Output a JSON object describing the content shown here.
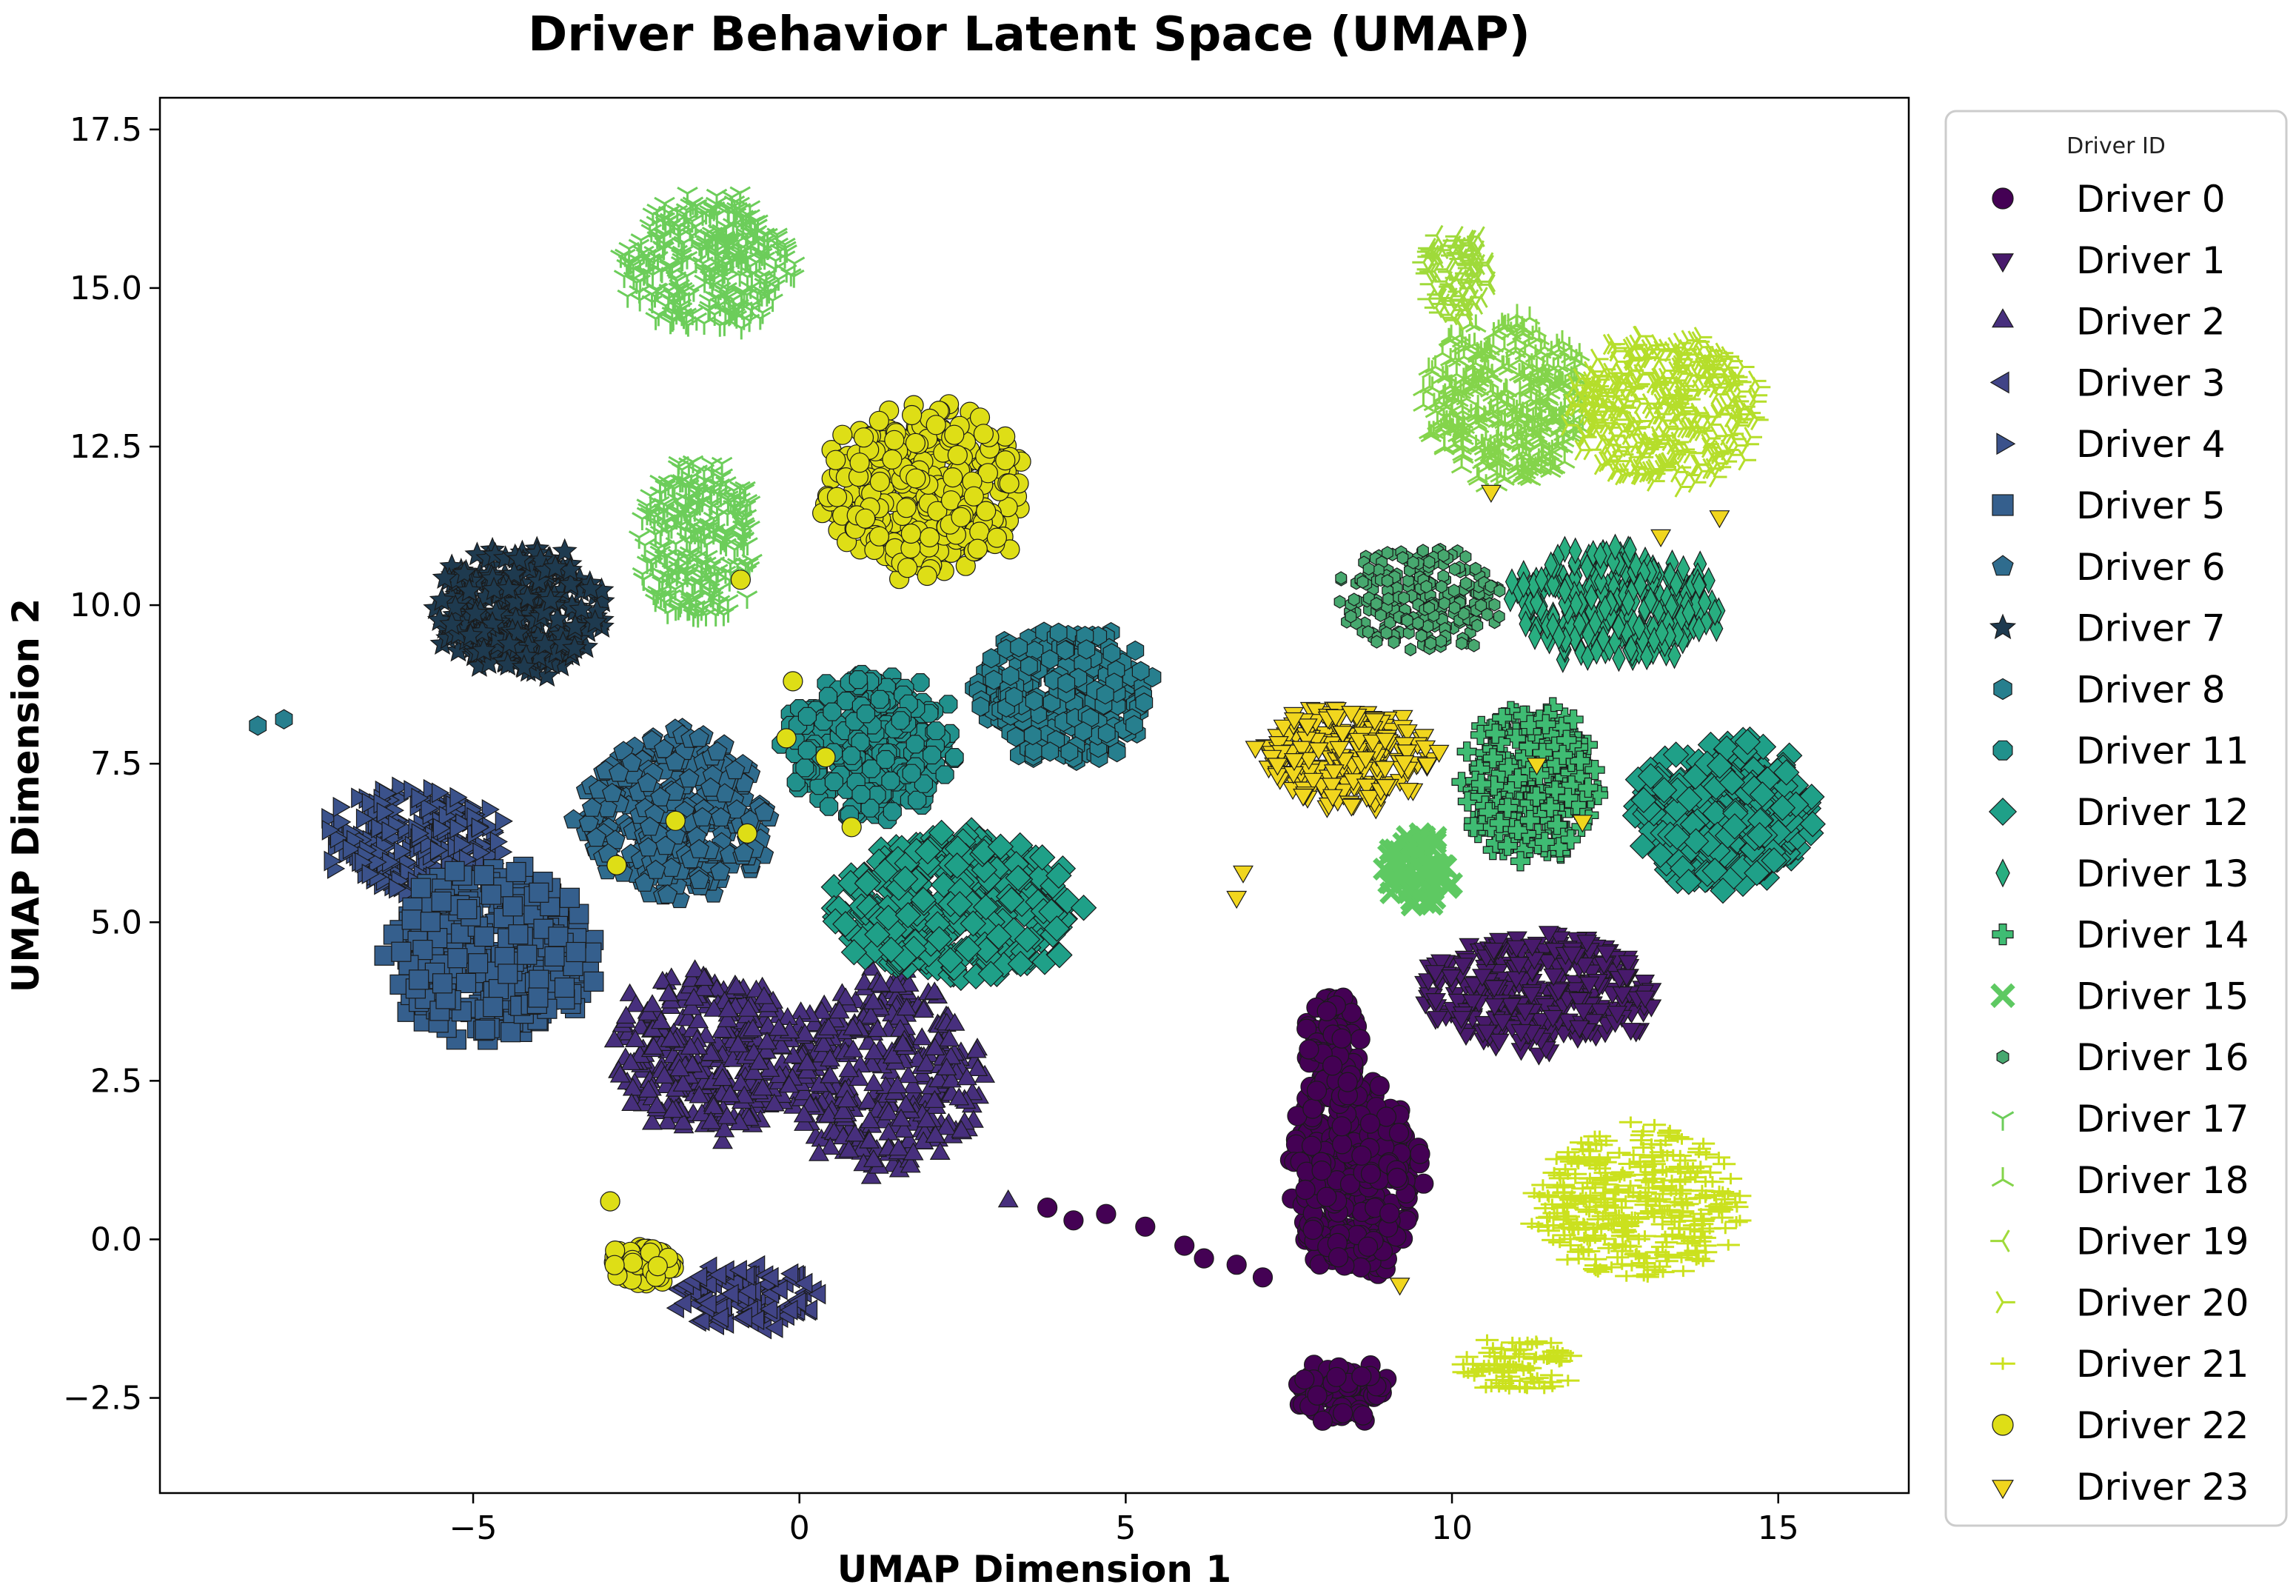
{
  "chart_data": {
    "type": "scatter",
    "title": "Driver Behavior Latent Space (UMAP)",
    "xlabel": "UMAP Dimension 1",
    "ylabel": "UMAP Dimension 2",
    "xlim": [
      -9.8,
      17.0
    ],
    "ylim": [
      -4.0,
      18.0
    ],
    "xticks": [
      -5,
      0,
      5,
      10,
      15
    ],
    "yticks": [
      -2.5,
      0.0,
      2.5,
      5.0,
      7.5,
      10.0,
      12.5,
      15.0,
      17.5
    ],
    "xtick_labels": [
      "−5",
      "0",
      "5",
      "10",
      "15"
    ],
    "ytick_labels": [
      "−2.5",
      "0.0",
      "2.5",
      "5.0",
      "7.5",
      "10.0",
      "12.5",
      "15.0",
      "17.5"
    ],
    "grid": false,
    "legend": {
      "title": "Driver ID",
      "placement": "outside-right"
    },
    "series": [
      {
        "name": "Driver 0",
        "marker": "circle",
        "color": "#440154",
        "clusters": [
          {
            "cx": 8.5,
            "cy": 1.0,
            "rx": 1.1,
            "ry": 1.8
          },
          {
            "cx": 8.2,
            "cy": 3.0,
            "rx": 0.5,
            "ry": 1.0
          },
          {
            "cx": 8.3,
            "cy": -2.4,
            "rx": 0.8,
            "ry": 0.55
          }
        ],
        "points": [
          {
            "x": 3.8,
            "y": 0.5
          },
          {
            "x": 4.2,
            "y": 0.3
          },
          {
            "x": 4.7,
            "y": 0.4
          },
          {
            "x": 5.3,
            "y": 0.2
          },
          {
            "x": 5.9,
            "y": -0.1
          },
          {
            "x": 6.2,
            "y": -0.3
          },
          {
            "x": 6.7,
            "y": -0.4
          },
          {
            "x": 7.1,
            "y": -0.6
          }
        ]
      },
      {
        "name": "Driver 1",
        "marker": "triangle-down",
        "color": "#481a6c",
        "clusters": [
          {
            "cx": 11.3,
            "cy": 3.9,
            "rx": 2.0,
            "ry": 1.0
          }
        ]
      },
      {
        "name": "Driver 2",
        "marker": "triangle-up",
        "color": "#472f7d",
        "clusters": [
          {
            "cx": 1.3,
            "cy": 2.6,
            "rx": 1.6,
            "ry": 1.7
          },
          {
            "cx": -1.4,
            "cy": 2.9,
            "rx": 1.7,
            "ry": 1.4
          }
        ],
        "points": [
          {
            "x": 3.2,
            "y": 0.6
          }
        ]
      },
      {
        "name": "Driver 3",
        "marker": "triangle-left",
        "color": "#414487",
        "clusters": [
          {
            "cx": -0.8,
            "cy": -0.9,
            "rx": 1.2,
            "ry": 0.55
          }
        ]
      },
      {
        "name": "Driver 4",
        "marker": "triangle-right",
        "color": "#3b528b",
        "clusters": [
          {
            "cx": -5.9,
            "cy": 6.3,
            "rx": 1.5,
            "ry": 1.0
          }
        ]
      },
      {
        "name": "Driver 5",
        "marker": "square",
        "color": "#355f8d",
        "clusters": [
          {
            "cx": -4.7,
            "cy": 4.5,
            "rx": 1.7,
            "ry": 1.5
          }
        ]
      },
      {
        "name": "Driver 6",
        "marker": "pentagon",
        "color": "#2f6c8e",
        "clusters": [
          {
            "cx": -1.9,
            "cy": 6.7,
            "rx": 1.6,
            "ry": 1.4
          }
        ]
      },
      {
        "name": "Driver 7",
        "marker": "star",
        "color": "#1e3a4f",
        "clusters": [
          {
            "cx": -4.3,
            "cy": 9.9,
            "rx": 1.5,
            "ry": 1.1
          }
        ]
      },
      {
        "name": "Driver 8",
        "marker": "hexagon",
        "color": "#277f8e",
        "clusters": [
          {
            "cx": 4.1,
            "cy": 8.6,
            "rx": 1.5,
            "ry": 1.2
          }
        ],
        "points": [
          {
            "x": -7.9,
            "y": 8.2
          },
          {
            "x": -8.3,
            "y": 8.1
          }
        ]
      },
      {
        "name": "Driver 11",
        "marker": "octagon",
        "color": "#21918c",
        "clusters": [
          {
            "cx": 1.1,
            "cy": 7.8,
            "rx": 1.4,
            "ry": 1.3
          }
        ]
      },
      {
        "name": "Driver 12",
        "marker": "diamond",
        "color": "#1fa088",
        "clusters": [
          {
            "cx": 14.2,
            "cy": 6.7,
            "rx": 1.5,
            "ry": 1.3
          },
          {
            "cx": 2.4,
            "cy": 5.2,
            "rx": 2.0,
            "ry": 1.3
          }
        ]
      },
      {
        "name": "Driver 13",
        "marker": "thin-diamond",
        "color": "#28ae80",
        "clusters": [
          {
            "cx": 12.5,
            "cy": 10.0,
            "rx": 1.8,
            "ry": 1.0
          }
        ]
      },
      {
        "name": "Driver 14",
        "marker": "plus",
        "color": "#3fbc73",
        "clusters": [
          {
            "cx": 11.2,
            "cy": 7.2,
            "rx": 1.1,
            "ry": 1.4
          }
        ]
      },
      {
        "name": "Driver 15",
        "marker": "x",
        "color": "#5ec962",
        "clusters": [
          {
            "cx": 9.5,
            "cy": 5.8,
            "rx": 0.6,
            "ry": 0.7
          }
        ]
      },
      {
        "name": "Driver 16",
        "marker": "small-hexagon",
        "color": "#47a86f",
        "clusters": [
          {
            "cx": 9.5,
            "cy": 10.1,
            "rx": 1.4,
            "ry": 1.0
          }
        ]
      },
      {
        "name": "Driver 17",
        "marker": "tri-down",
        "color": "#6ccd5a",
        "clusters": [
          {
            "cx": -1.4,
            "cy": 15.4,
            "rx": 1.5,
            "ry": 1.2
          },
          {
            "cx": -1.6,
            "cy": 11.0,
            "rx": 1.0,
            "ry": 1.5
          }
        ]
      },
      {
        "name": "Driver 18",
        "marker": "tri-up",
        "color": "#84d44b",
        "clusters": [
          {
            "cx": 10.8,
            "cy": 13.2,
            "rx": 1.4,
            "ry": 1.5
          }
        ]
      },
      {
        "name": "Driver 19",
        "marker": "tri-left",
        "color": "#9fda3a",
        "clusters": [
          {
            "cx": 10.1,
            "cy": 15.2,
            "rx": 0.6,
            "ry": 0.8
          }
        ]
      },
      {
        "name": "Driver 20",
        "marker": "tri-right",
        "color": "#b5de2b",
        "clusters": [
          {
            "cx": 13.3,
            "cy": 13.1,
            "rx": 1.6,
            "ry": 1.3
          }
        ]
      },
      {
        "name": "Driver 21",
        "marker": "hline",
        "color": "#cbe11e",
        "clusters": [
          {
            "cx": 12.8,
            "cy": 0.6,
            "rx": 1.7,
            "ry": 1.3
          },
          {
            "cx": 11.0,
            "cy": -2.0,
            "rx": 1.0,
            "ry": 0.5
          }
        ]
      },
      {
        "name": "Driver 22",
        "marker": "circle",
        "color": "#dede16",
        "clusters": [
          {
            "cx": 1.9,
            "cy": 11.8,
            "rx": 1.7,
            "ry": 1.5
          },
          {
            "cx": -2.4,
            "cy": -0.4,
            "rx": 0.6,
            "ry": 0.35
          }
        ],
        "points": [
          {
            "x": -0.1,
            "y": 8.8
          },
          {
            "x": -0.2,
            "y": 7.9
          },
          {
            "x": 0.4,
            "y": 7.6
          },
          {
            "x": -0.8,
            "y": 6.4
          },
          {
            "x": -1.9,
            "y": 6.6
          },
          {
            "x": -2.8,
            "y": 5.9
          },
          {
            "x": 0.8,
            "y": 6.5
          },
          {
            "x": -2.9,
            "y": 0.6
          },
          {
            "x": -0.9,
            "y": 10.4
          }
        ]
      },
      {
        "name": "Driver 23",
        "marker": "triangle-down",
        "color": "#f1d61e",
        "clusters": [
          {
            "cx": 8.4,
            "cy": 7.6,
            "rx": 1.5,
            "ry": 0.9
          }
        ],
        "points": [
          {
            "x": 6.8,
            "y": 5.8
          },
          {
            "x": 6.7,
            "y": 5.4
          },
          {
            "x": 11.3,
            "y": 7.5
          },
          {
            "x": 12.0,
            "y": 6.6
          },
          {
            "x": 14.1,
            "y": 11.4
          },
          {
            "x": 13.2,
            "y": 11.1
          },
          {
            "x": 10.6,
            "y": 11.8
          },
          {
            "x": 9.2,
            "y": -0.7
          }
        ]
      }
    ]
  }
}
